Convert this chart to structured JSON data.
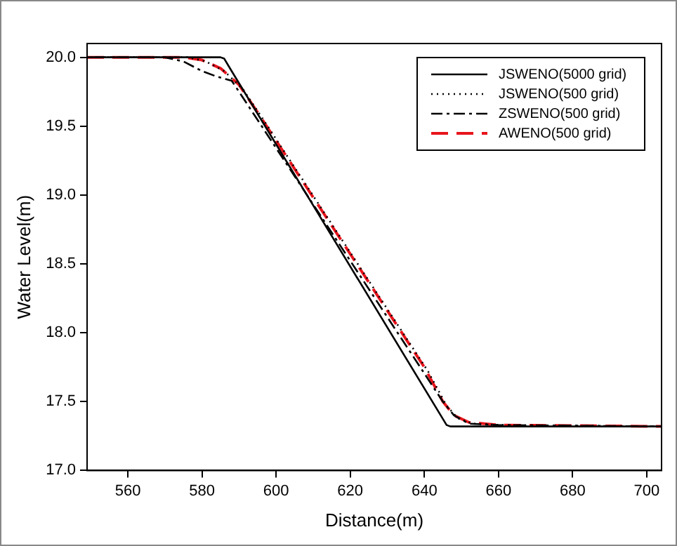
{
  "chart_data": {
    "type": "line",
    "xlabel": "Distance(m)",
    "ylabel": "Water Level(m)",
    "xlim": [
      549,
      704
    ],
    "ylim": [
      17.0,
      20.1
    ],
    "xticks": [
      560,
      580,
      600,
      620,
      640,
      660,
      680,
      700
    ],
    "yticks": [
      {
        "value": 17.0,
        "label": "17.0"
      },
      {
        "value": 17.5,
        "label": "17.5"
      },
      {
        "value": 18.0,
        "label": "18.0"
      },
      {
        "value": 18.5,
        "label": "18.5"
      },
      {
        "value": 19.0,
        "label": "19.0"
      },
      {
        "value": 19.5,
        "label": "19.5"
      },
      {
        "value": 20.0,
        "label": "20.0"
      }
    ],
    "legend": "top right",
    "grid": false,
    "marker": "none",
    "series": [
      {
        "name": "JSWENO(5000 grid)",
        "color": "#000000",
        "line_style": "solid",
        "x": [
          549,
          585,
          586,
          588,
          646,
          647,
          704
        ],
        "values": [
          20.0,
          20.0,
          19.99,
          19.9,
          17.33,
          17.32,
          17.32
        ]
      },
      {
        "name": "JSWENO(500 grid)",
        "color": "#000000",
        "line_style": "dotted",
        "x": [
          550,
          576,
          581,
          586,
          591,
          596,
          641,
          646,
          649,
          653,
          661,
          700
        ],
        "values": [
          20.0,
          20.0,
          19.97,
          19.9,
          19.77,
          19.57,
          17.72,
          17.47,
          17.38,
          17.34,
          17.33,
          17.32
        ]
      },
      {
        "name": "ZSWENO(500 grid)",
        "color": "#000000",
        "line_style": "dashdot",
        "x": [
          551,
          570,
          575,
          580,
          584,
          588,
          590,
          645,
          648,
          652,
          660,
          702
        ],
        "values": [
          20.0,
          20.0,
          19.97,
          19.9,
          19.86,
          19.83,
          19.75,
          17.5,
          17.4,
          17.34,
          17.33,
          17.32
        ]
      },
      {
        "name": "AWENO(500 grid)",
        "color": "#e8141c",
        "line_style": "dashed",
        "x": [
          549,
          575,
          580,
          585,
          590,
          595,
          640,
          645,
          648,
          652,
          660,
          704
        ],
        "values": [
          20.0,
          20.0,
          19.98,
          19.92,
          19.8,
          19.6,
          17.75,
          17.5,
          17.4,
          17.35,
          17.33,
          17.32
        ]
      }
    ]
  }
}
